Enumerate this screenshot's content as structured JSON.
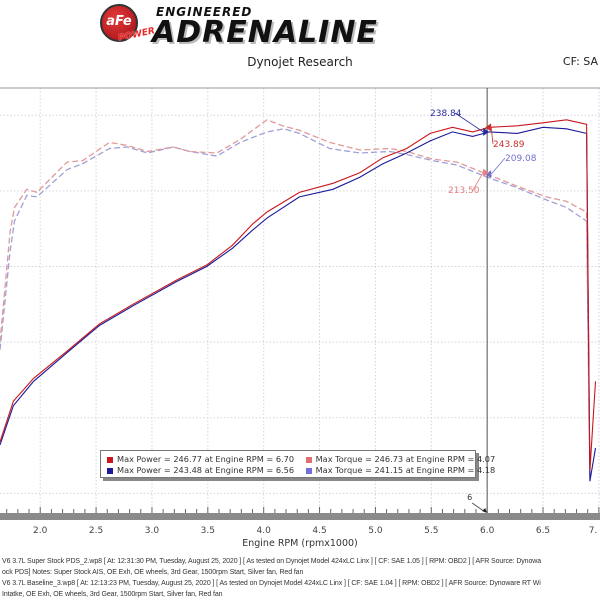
{
  "header": {
    "logo_text": "aFe POWER",
    "logo_tagline_small": "ENGINEERED",
    "logo_tagline_big": "ADRENALINE",
    "subtitle": "Dynojet Research",
    "cf_label": "CF: SA"
  },
  "legend": [
    {
      "label": "Max Power = 246.77 at Engine RPM = 6.70",
      "color": "#c8181e"
    },
    {
      "label": "Max Torque = 246.73 at Engine RPM = 4.07",
      "color": "#e07070"
    },
    {
      "label": "Max Power = 243.48 at Engine RPM = 6.56",
      "color": "#1a1a9a"
    },
    {
      "label": "Max Torque = 241.15 at Engine RPM = 4.18",
      "color": "#7070d8"
    }
  ],
  "footer": [
    "V6 3.7L Super Stock PDS_2.wp8 [ At: 12:31:30 PM, Tuesday, August 25, 2020 ] [ As tested on Dynojet Model 424xLC Linx ] [ CF: SAE 1.05 ] [ RPM: OBD2 ] [ AFR Source: Dynowa",
    "ock PDS]  Notes: Super Stock AIS, OE Exh, OE wheels, 3rd Gear, 1500rpm Start, Silver fan, Red fan",
    "V6 3.7L Baseline_3.wp8 [ At: 12:13:23 PM, Tuesday, August 25, 2020 ] [ As tested on Dynojet Model 424xLC Linx ] [ CF: SAE 1.04 ] [ RPM: OBD2 ] [ AFR Source: Dynoware RT Wi",
    "Intatke, OE Exh, OE wheels, 3rd Gear, 1500rpm Start, Silver fan, Red fan"
  ],
  "chart_data": {
    "type": "line",
    "xlabel": "Engine RPM (rpmx1000)",
    "ylabel": "",
    "xlim": [
      1.64,
      7.01
    ],
    "ylim": [
      -13,
      268
    ],
    "grid": true,
    "legend_position": "bottom-center",
    "xticks": [
      "2.0",
      "2.5",
      "3.0",
      "3.5",
      "4.0",
      "4.5",
      "5.0",
      "5.5",
      "6.0",
      "6.5",
      "7."
    ],
    "cursor": {
      "x": 6.0,
      "label": "6"
    },
    "annotations": [
      {
        "text": "238.84",
        "color": "#2a2a9a"
      },
      {
        "text": "243.89",
        "color": "#c83030"
      },
      {
        "text": "209.08",
        "color": "#7070d0"
      },
      {
        "text": "213.50",
        "color": "#e08080"
      }
    ],
    "series": [
      {
        "kind": "power",
        "color": "#c8181e",
        "dashed": false,
        "x": [
          1.64,
          1.76,
          1.94,
          2.24,
          2.53,
          2.83,
          3.22,
          3.49,
          3.72,
          3.9,
          4.03,
          4.32,
          4.62,
          4.86,
          5.07,
          5.28,
          5.49,
          5.69,
          5.87,
          6.02,
          6.27,
          6.5,
          6.71,
          6.89,
          6.92,
          6.97
        ],
        "y": [
          34,
          61,
          76,
          94,
          112,
          125,
          141,
          151,
          164,
          178,
          186,
          199,
          205,
          212,
          222,
          228,
          238,
          242,
          239,
          242,
          243,
          245,
          247,
          244,
          15,
          74
        ]
      },
      {
        "kind": "power",
        "color": "#1a1a9a",
        "dashed": false,
        "x": [
          1.64,
          1.76,
          1.94,
          2.24,
          2.53,
          2.83,
          3.22,
          3.49,
          3.72,
          3.9,
          4.03,
          4.32,
          4.62,
          4.86,
          5.07,
          5.28,
          5.49,
          5.69,
          5.87,
          6.02,
          6.27,
          6.5,
          6.71,
          6.89,
          6.92,
          6.97
        ],
        "y": [
          32,
          58,
          74,
          93,
          111,
          124,
          140,
          150,
          162,
          174,
          182,
          196,
          201,
          209,
          218,
          225,
          233,
          239,
          236,
          239,
          238,
          242,
          241,
          238,
          8,
          30
        ]
      },
      {
        "kind": "torque",
        "color": "#e09a9a",
        "dashed": true,
        "x": [
          1.64,
          1.73,
          1.77,
          1.88,
          1.97,
          2.24,
          2.38,
          2.62,
          2.78,
          2.96,
          3.19,
          3.34,
          3.58,
          3.79,
          4.03,
          4.17,
          4.32,
          4.59,
          4.86,
          5.13,
          5.28,
          5.51,
          5.73,
          6.0,
          6.27,
          6.53,
          6.71,
          6.89,
          6.92
        ],
        "y": [
          100,
          173,
          189,
          201,
          199,
          219,
          220,
          232,
          230,
          226,
          229,
          226,
          225,
          234,
          247,
          243,
          240,
          232,
          227,
          228,
          226,
          221,
          219,
          211,
          203,
          196,
          193,
          186,
          15
        ]
      },
      {
        "kind": "torque",
        "color": "#a0a0d8",
        "dashed": true,
        "x": [
          1.64,
          1.73,
          1.77,
          1.88,
          1.97,
          2.24,
          2.38,
          2.62,
          2.78,
          2.96,
          3.19,
          3.34,
          3.58,
          3.79,
          4.03,
          4.18,
          4.32,
          4.59,
          4.86,
          5.13,
          5.28,
          5.51,
          5.73,
          6.0,
          6.27,
          6.53,
          6.71,
          6.89,
          6.92
        ],
        "y": [
          95,
          160,
          180,
          197,
          196,
          214,
          218,
          228,
          229,
          225,
          229,
          226,
          223,
          232,
          239,
          241,
          238,
          228,
          225,
          226,
          224,
          220,
          217,
          209,
          202,
          194,
          189,
          180,
          10
        ]
      }
    ]
  }
}
